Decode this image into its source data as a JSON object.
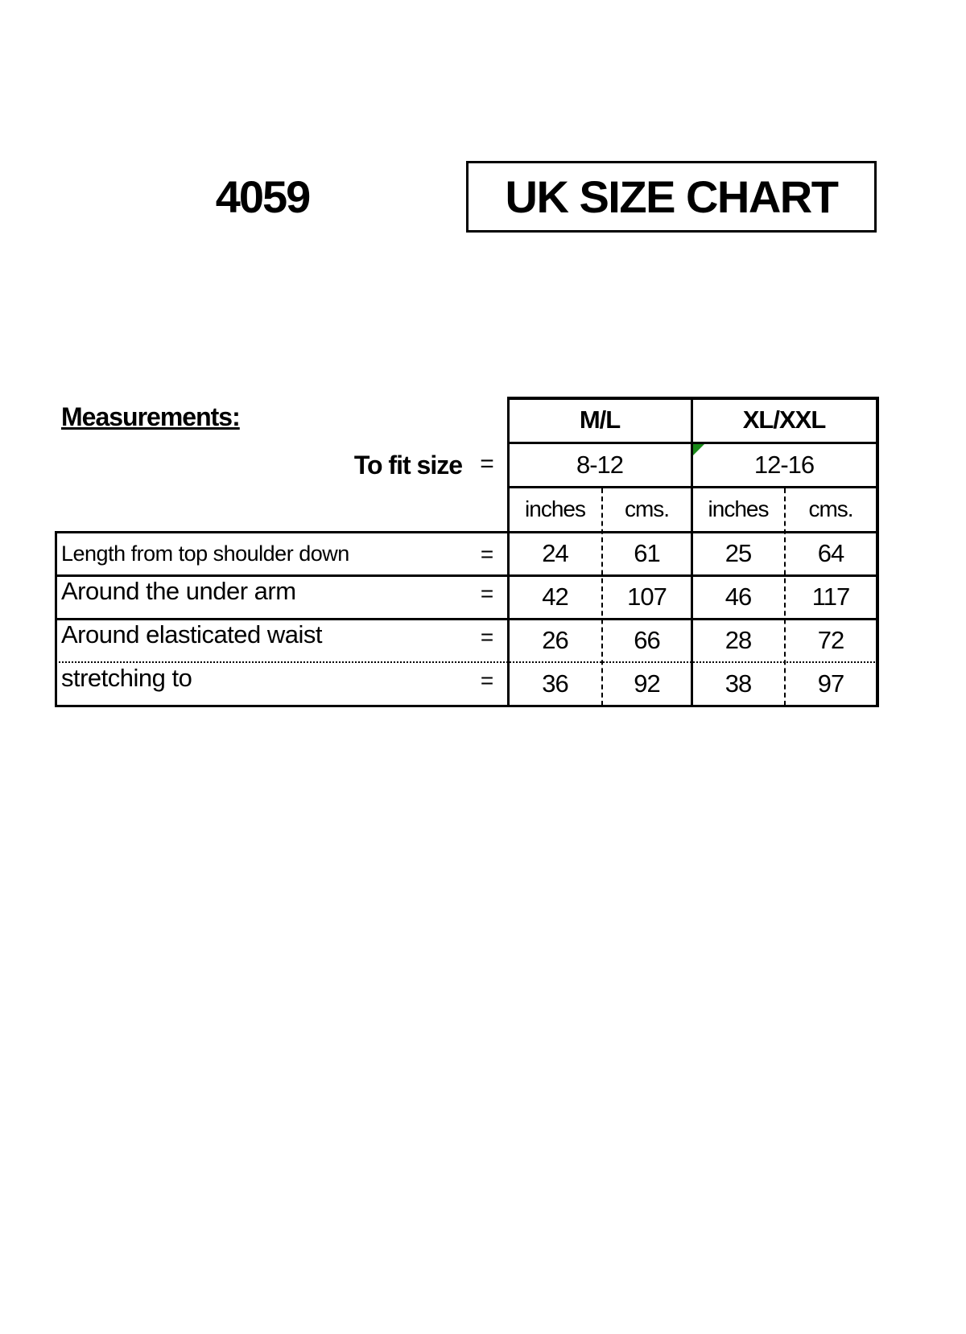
{
  "product_code": "4059",
  "title": "UK SIZE CHART",
  "measurements_label": "Measurements:",
  "fit_label": "To fit size",
  "equals": "=",
  "sizes": [
    {
      "name": "M/L",
      "fit": "8-12"
    },
    {
      "name": "XL/XXL",
      "fit": "12-16"
    }
  ],
  "units": [
    "inches",
    "cms.",
    "inches",
    "cms."
  ],
  "rows": [
    {
      "label": "Length from top shoulder down",
      "values": [
        "24",
        "61",
        "25",
        "64"
      ]
    },
    {
      "label": "Around the under arm",
      "values": [
        "42",
        "107",
        "46",
        "117"
      ]
    },
    {
      "label": "Around elasticated waist",
      "values": [
        "26",
        "66",
        "28",
        "72"
      ]
    },
    {
      "label": "stretching to",
      "values": [
        "36",
        "92",
        "38",
        "97"
      ]
    }
  ],
  "colors": {
    "comment_marker": "#1a8a1a"
  }
}
